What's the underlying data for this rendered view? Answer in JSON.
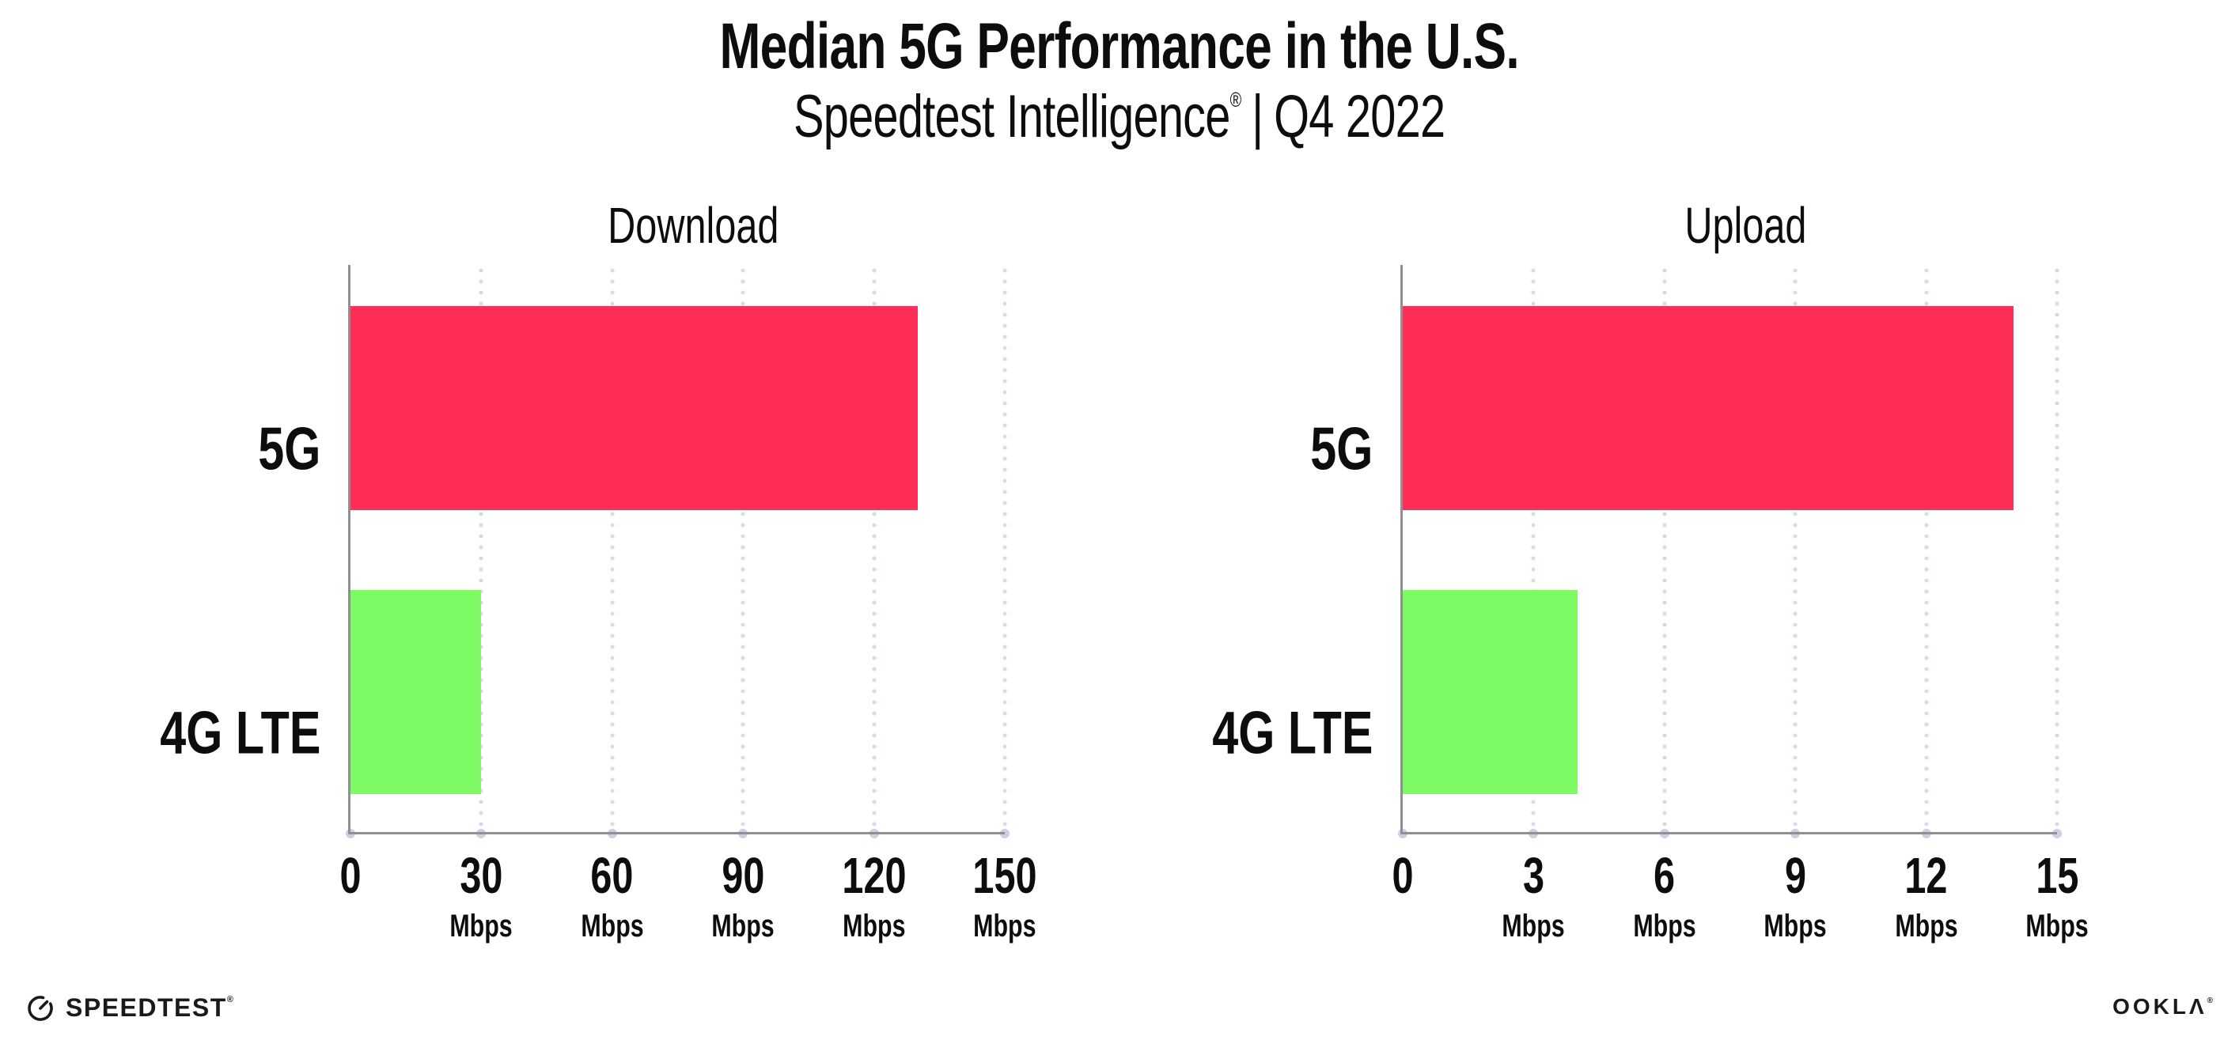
{
  "header": {
    "title": "Median 5G Performance in the U.S.",
    "subtitle_brand": "Speedtest Intelligence",
    "subtitle_reg": "®",
    "subtitle_sep": "|",
    "subtitle_period": "Q4 2022"
  },
  "chart_data": [
    {
      "type": "bar",
      "orientation": "horizontal",
      "title": "Download",
      "categories": [
        "5G",
        "4G LTE"
      ],
      "values": [
        130,
        30
      ],
      "unit": "Mbps",
      "xlim": [
        0,
        150
      ],
      "xticks": [
        0,
        30,
        60,
        90,
        120,
        150
      ],
      "bar_colors": [
        "#fe2e56",
        "#7dfa64"
      ],
      "grid": "dotted-vertical",
      "legend": "none"
    },
    {
      "type": "bar",
      "orientation": "horizontal",
      "title": "Upload",
      "categories": [
        "5G",
        "4G LTE"
      ],
      "values": [
        14,
        4
      ],
      "unit": "Mbps",
      "xlim": [
        0,
        15
      ],
      "xticks": [
        0,
        3,
        6,
        9,
        12,
        15
      ],
      "bar_colors": [
        "#fe2e56",
        "#7dfa64"
      ],
      "grid": "dotted-vertical",
      "legend": "none"
    }
  ],
  "footer": {
    "speedtest_label": "SPEEDTEST",
    "speedtest_reg": "®",
    "ookla_label": "OOKLΛ",
    "ookla_reg": "®"
  },
  "colors": {
    "bar_5g": "#fe2e56",
    "bar_4g_lte": "#7dfa64",
    "axis": "#8f8f94",
    "grid_dots": "#d9dbe7",
    "text": "#0d0d0d",
    "background": "#ffffff"
  }
}
